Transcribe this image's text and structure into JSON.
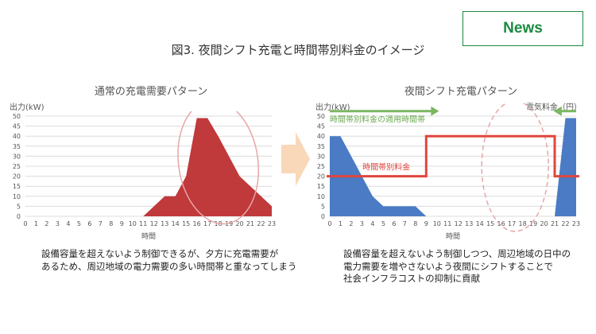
{
  "badge": {
    "label": "News"
  },
  "figure": {
    "title": "図3. 夜間シフト充電と時間帯別料金のイメージ"
  },
  "colors": {
    "red_fill": "#c0393b",
    "blue_fill": "#4a7bc4",
    "rate_line": "#e0463c",
    "green_arrow": "#7bb662",
    "ellipse": "#e8a6a6",
    "arrow_fill": "#f8d1ad"
  },
  "chart_data": [
    {
      "type": "area",
      "title": "通常の充電需要パターン",
      "ylabel": "出力(kW)",
      "xlabel": "時間",
      "x": [
        0,
        1,
        2,
        3,
        4,
        5,
        6,
        7,
        8,
        9,
        10,
        11,
        12,
        13,
        14,
        15,
        16,
        17,
        18,
        19,
        20,
        21,
        22,
        23
      ],
      "y_ticks": [
        0,
        5,
        10,
        15,
        20,
        25,
        30,
        35,
        40,
        45,
        50
      ],
      "ylim": [
        0,
        50
      ],
      "series": [
        {
          "values": [
            0,
            0,
            0,
            0,
            0,
            0,
            0,
            0,
            0,
            0,
            0,
            0,
            5,
            10,
            10,
            20,
            49,
            49,
            40,
            30,
            20,
            15,
            10,
            5
          ]
        }
      ],
      "annotation": "highlight ellipse around evening peak"
    },
    {
      "type": "area",
      "title": "夜間シフト充電パターン",
      "ylabel": "出力(kW)",
      "xlabel": "時間",
      "x": [
        0,
        1,
        2,
        3,
        4,
        5,
        6,
        7,
        8,
        9,
        10,
        11,
        12,
        13,
        14,
        15,
        16,
        17,
        18,
        19,
        20,
        21,
        22,
        23
      ],
      "y_ticks": [
        0,
        5,
        10,
        15,
        20,
        25,
        30,
        35,
        40,
        45,
        50
      ],
      "ylim": [
        0,
        50
      ],
      "series": [
        {
          "values": [
            40,
            40,
            30,
            20,
            10,
            5,
            5,
            5,
            5,
            0,
            0,
            0,
            0,
            0,
            0,
            0,
            0,
            0,
            0,
            0,
            0,
            0,
            49,
            49
          ]
        }
      ],
      "rate_line": {
        "label": "時間帯別料金",
        "right_axis_label": "電気料金（円）",
        "steps": [
          {
            "from": 0,
            "to": 9,
            "value": 20
          },
          {
            "from": 9,
            "to": 21,
            "value": 40
          },
          {
            "from": 21,
            "to": 23,
            "value": 20
          }
        ]
      },
      "window_annotation": "時間帯別料金の適用時間帯",
      "annotation": "dashed ellipse over daytime hours"
    }
  ],
  "captions": {
    "left": [
      "設備容量を超えないよう制御できるが、夕方に充電需要が",
      "あるため、周辺地域の電力需要の多い時間帯と重なってしまう"
    ],
    "right": [
      "設備容量を超えないよう制御しつつ、周辺地域の日中の",
      "電力需要を増やさないよう夜間にシフトすることで",
      "社会インフラコストの抑制に貢献"
    ]
  }
}
